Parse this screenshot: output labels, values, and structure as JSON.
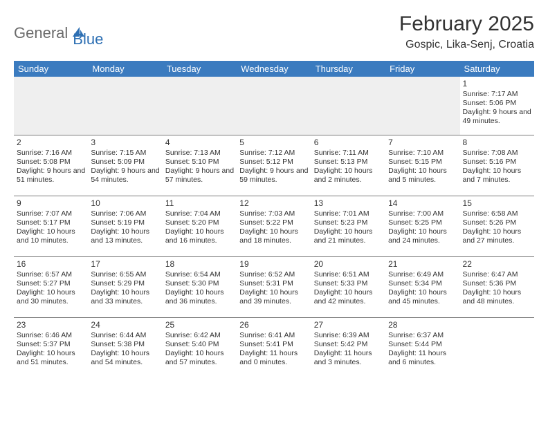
{
  "brand": {
    "part1": "General",
    "part2": "Blue"
  },
  "title": "February 2025",
  "location": "Gospic, Lika-Senj, Croatia",
  "colors": {
    "header_bg": "#3b7bbf",
    "header_text": "#ffffff",
    "row_border": "#7a7a7a",
    "empty_bg": "#efefef",
    "logo_gray": "#6b6b6b",
    "logo_blue": "#2d6fb3"
  },
  "weekdays": [
    "Sunday",
    "Monday",
    "Tuesday",
    "Wednesday",
    "Thursday",
    "Friday",
    "Saturday"
  ],
  "weeks": [
    [
      null,
      null,
      null,
      null,
      null,
      null,
      {
        "d": "1",
        "sunrise": "7:17 AM",
        "sunset": "5:06 PM",
        "daylight": "9 hours and 49 minutes."
      }
    ],
    [
      {
        "d": "2",
        "sunrise": "7:16 AM",
        "sunset": "5:08 PM",
        "daylight": "9 hours and 51 minutes."
      },
      {
        "d": "3",
        "sunrise": "7:15 AM",
        "sunset": "5:09 PM",
        "daylight": "9 hours and 54 minutes."
      },
      {
        "d": "4",
        "sunrise": "7:13 AM",
        "sunset": "5:10 PM",
        "daylight": "9 hours and 57 minutes."
      },
      {
        "d": "5",
        "sunrise": "7:12 AM",
        "sunset": "5:12 PM",
        "daylight": "9 hours and 59 minutes."
      },
      {
        "d": "6",
        "sunrise": "7:11 AM",
        "sunset": "5:13 PM",
        "daylight": "10 hours and 2 minutes."
      },
      {
        "d": "7",
        "sunrise": "7:10 AM",
        "sunset": "5:15 PM",
        "daylight": "10 hours and 5 minutes."
      },
      {
        "d": "8",
        "sunrise": "7:08 AM",
        "sunset": "5:16 PM",
        "daylight": "10 hours and 7 minutes."
      }
    ],
    [
      {
        "d": "9",
        "sunrise": "7:07 AM",
        "sunset": "5:17 PM",
        "daylight": "10 hours and 10 minutes."
      },
      {
        "d": "10",
        "sunrise": "7:06 AM",
        "sunset": "5:19 PM",
        "daylight": "10 hours and 13 minutes."
      },
      {
        "d": "11",
        "sunrise": "7:04 AM",
        "sunset": "5:20 PM",
        "daylight": "10 hours and 16 minutes."
      },
      {
        "d": "12",
        "sunrise": "7:03 AM",
        "sunset": "5:22 PM",
        "daylight": "10 hours and 18 minutes."
      },
      {
        "d": "13",
        "sunrise": "7:01 AM",
        "sunset": "5:23 PM",
        "daylight": "10 hours and 21 minutes."
      },
      {
        "d": "14",
        "sunrise": "7:00 AM",
        "sunset": "5:25 PM",
        "daylight": "10 hours and 24 minutes."
      },
      {
        "d": "15",
        "sunrise": "6:58 AM",
        "sunset": "5:26 PM",
        "daylight": "10 hours and 27 minutes."
      }
    ],
    [
      {
        "d": "16",
        "sunrise": "6:57 AM",
        "sunset": "5:27 PM",
        "daylight": "10 hours and 30 minutes."
      },
      {
        "d": "17",
        "sunrise": "6:55 AM",
        "sunset": "5:29 PM",
        "daylight": "10 hours and 33 minutes."
      },
      {
        "d": "18",
        "sunrise": "6:54 AM",
        "sunset": "5:30 PM",
        "daylight": "10 hours and 36 minutes."
      },
      {
        "d": "19",
        "sunrise": "6:52 AM",
        "sunset": "5:31 PM",
        "daylight": "10 hours and 39 minutes."
      },
      {
        "d": "20",
        "sunrise": "6:51 AM",
        "sunset": "5:33 PM",
        "daylight": "10 hours and 42 minutes."
      },
      {
        "d": "21",
        "sunrise": "6:49 AM",
        "sunset": "5:34 PM",
        "daylight": "10 hours and 45 minutes."
      },
      {
        "d": "22",
        "sunrise": "6:47 AM",
        "sunset": "5:36 PM",
        "daylight": "10 hours and 48 minutes."
      }
    ],
    [
      {
        "d": "23",
        "sunrise": "6:46 AM",
        "sunset": "5:37 PM",
        "daylight": "10 hours and 51 minutes."
      },
      {
        "d": "24",
        "sunrise": "6:44 AM",
        "sunset": "5:38 PM",
        "daylight": "10 hours and 54 minutes."
      },
      {
        "d": "25",
        "sunrise": "6:42 AM",
        "sunset": "5:40 PM",
        "daylight": "10 hours and 57 minutes."
      },
      {
        "d": "26",
        "sunrise": "6:41 AM",
        "sunset": "5:41 PM",
        "daylight": "11 hours and 0 minutes."
      },
      {
        "d": "27",
        "sunrise": "6:39 AM",
        "sunset": "5:42 PM",
        "daylight": "11 hours and 3 minutes."
      },
      {
        "d": "28",
        "sunrise": "6:37 AM",
        "sunset": "5:44 PM",
        "daylight": "11 hours and 6 minutes."
      },
      null
    ]
  ],
  "labels": {
    "sunrise": "Sunrise: ",
    "sunset": "Sunset: ",
    "daylight": "Daylight: "
  }
}
